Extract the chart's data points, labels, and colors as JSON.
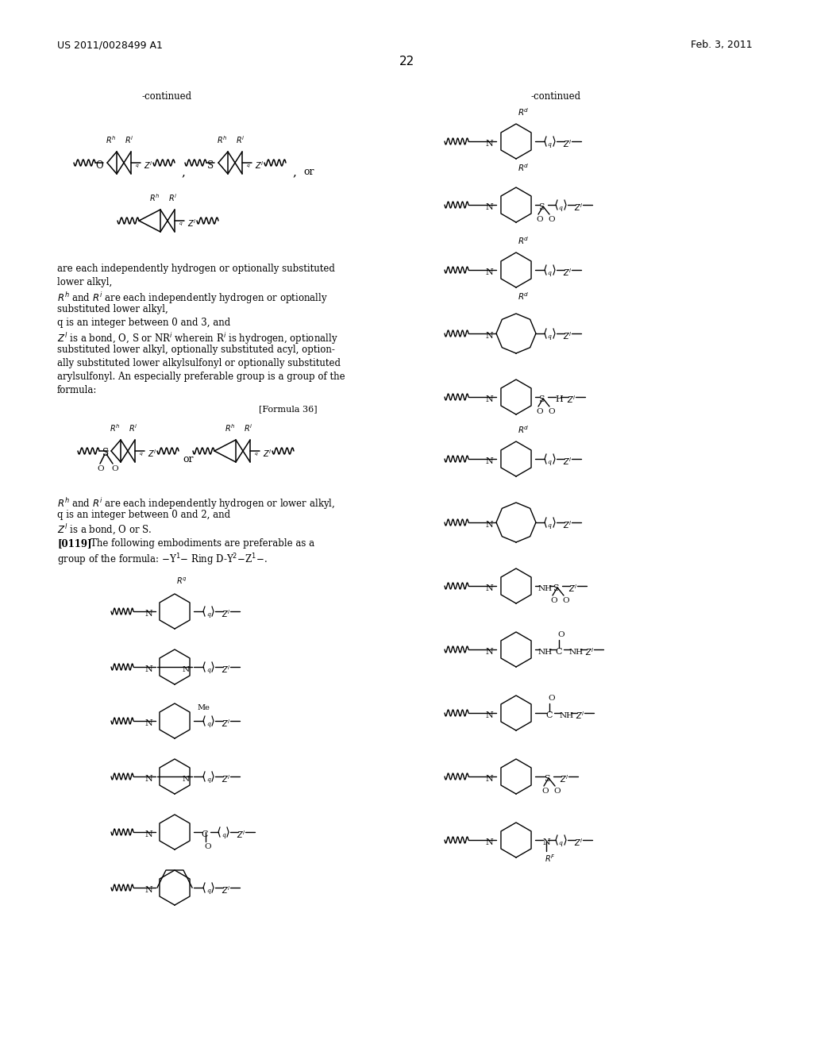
{
  "page_number": "22",
  "patent_number": "US 2011/0028499 A1",
  "patent_date": "Feb. 3, 2011",
  "background_color": "#ffffff",
  "figsize": [
    10.24,
    13.2
  ],
  "dpi": 100
}
